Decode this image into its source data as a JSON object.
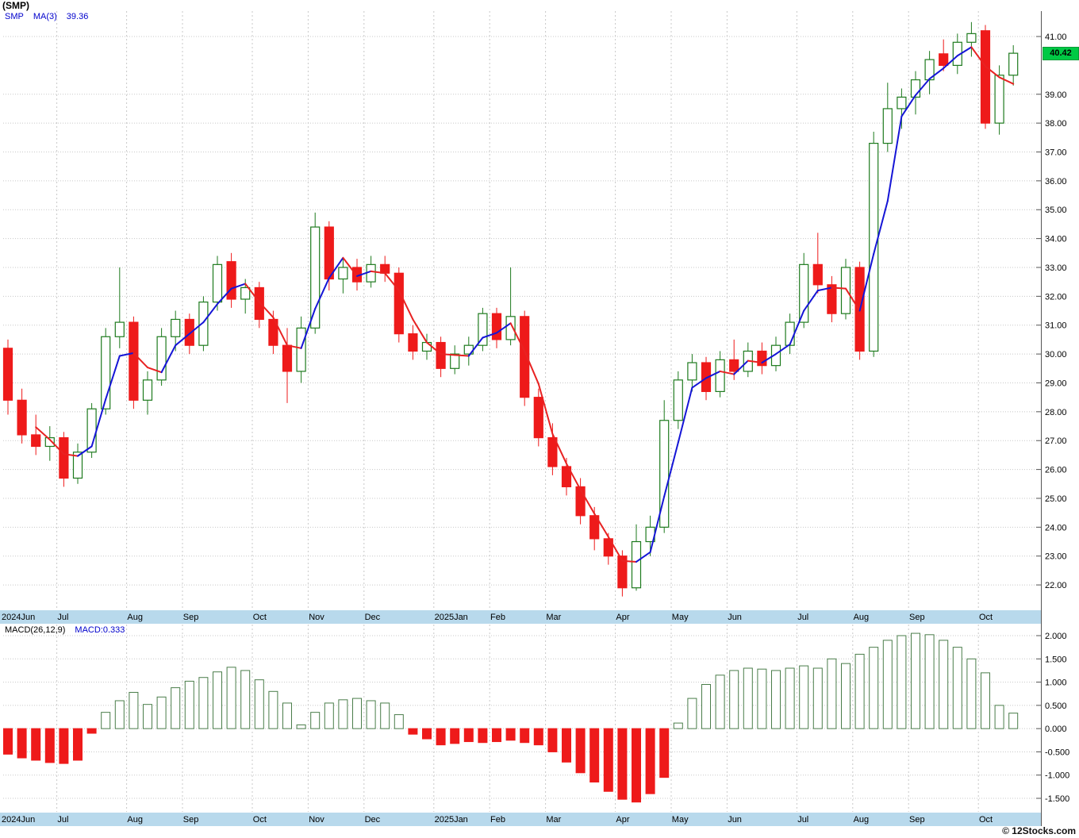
{
  "window": {
    "title": "(SMP)"
  },
  "main_legend": {
    "symbol": "SMP",
    "ma_label": "MA(3)",
    "ma_value": "39.36"
  },
  "macd_legend": {
    "label": "MACD(26,12,9)",
    "value": "MACD:0.333"
  },
  "price_badge": "40.42",
  "footer": {
    "copyright": "© 12Stocks.com"
  },
  "colors": {
    "up": "#1d7a1d",
    "down": "#ee1a1a",
    "ma_up": "#1515d6",
    "ma_down": "#e82222",
    "macd_up_outline": "#4a7d4a",
    "grid": "#c8c8c8",
    "band": "#b8d9ec",
    "axis_text": "#000000",
    "border": "#555555",
    "badge_bg": "#00c944"
  },
  "chart_data": [
    {
      "type": "candlestick",
      "title": "(SMP)",
      "series_name": "SMP weekly OHLC",
      "overlay": {
        "name": "MA(3)",
        "last_value": 39.36
      },
      "last_close": 40.42,
      "ylim": [
        21.15,
        41.88
      ],
      "price_ticks": [
        "41.00",
        "39.00",
        "38.00",
        "37.00",
        "36.00",
        "35.00",
        "34.00",
        "33.00",
        "32.00",
        "31.00",
        "30.00",
        "29.00",
        "28.00",
        "27.00",
        "26.00",
        "25.00",
        "24.00",
        "23.00",
        "22.00"
      ],
      "months": [
        {
          "label": "2024Jun",
          "i": 0
        },
        {
          "label": "Jul",
          "i": 4
        },
        {
          "label": "Aug",
          "i": 9
        },
        {
          "label": "Sep",
          "i": 13
        },
        {
          "label": "Oct",
          "i": 18
        },
        {
          "label": "Nov",
          "i": 22
        },
        {
          "label": "Dec",
          "i": 26
        },
        {
          "label": "2025Jan",
          "i": 31
        },
        {
          "label": "Feb",
          "i": 35
        },
        {
          "label": "Mar",
          "i": 39
        },
        {
          "label": "Apr",
          "i": 44
        },
        {
          "label": "May",
          "i": 48
        },
        {
          "label": "Jun",
          "i": 52
        },
        {
          "label": "Jul",
          "i": 57
        },
        {
          "label": "Aug",
          "i": 61
        },
        {
          "label": "Sep",
          "i": 65
        },
        {
          "label": "Oct",
          "i": 70
        }
      ],
      "ohlc": [
        [
          30.2,
          30.5,
          27.9,
          28.4
        ],
        [
          28.4,
          28.8,
          26.9,
          27.2
        ],
        [
          27.2,
          27.9,
          26.5,
          26.8
        ],
        [
          26.8,
          27.5,
          26.3,
          27.1
        ],
        [
          27.1,
          27.3,
          25.4,
          25.7
        ],
        [
          25.7,
          26.9,
          25.5,
          26.6
        ],
        [
          26.6,
          28.3,
          26.4,
          28.1
        ],
        [
          28.1,
          30.9,
          27.9,
          30.6
        ],
        [
          30.6,
          33.0,
          30.2,
          31.1
        ],
        [
          31.1,
          31.3,
          28.1,
          28.4
        ],
        [
          28.4,
          29.4,
          27.9,
          29.1
        ],
        [
          29.1,
          30.9,
          28.9,
          30.6
        ],
        [
          30.6,
          31.5,
          30.1,
          31.2
        ],
        [
          31.2,
          31.4,
          30.0,
          30.3
        ],
        [
          30.3,
          32.0,
          30.1,
          31.8
        ],
        [
          31.8,
          33.4,
          31.5,
          33.1
        ],
        [
          33.2,
          33.5,
          31.6,
          31.9
        ],
        [
          31.9,
          32.6,
          31.4,
          32.3
        ],
        [
          32.3,
          32.5,
          30.9,
          31.2
        ],
        [
          31.2,
          31.5,
          30.0,
          30.3
        ],
        [
          30.3,
          30.9,
          28.3,
          29.4
        ],
        [
          29.4,
          31.3,
          29.0,
          30.9
        ],
        [
          30.9,
          34.9,
          30.7,
          34.4
        ],
        [
          34.4,
          34.6,
          32.2,
          32.6
        ],
        [
          32.6,
          33.3,
          32.1,
          33.0
        ],
        [
          33.0,
          33.3,
          32.2,
          32.5
        ],
        [
          32.5,
          33.4,
          32.3,
          33.1
        ],
        [
          33.1,
          33.4,
          32.5,
          32.8
        ],
        [
          32.8,
          33.0,
          30.4,
          30.7
        ],
        [
          30.7,
          31.0,
          29.8,
          30.1
        ],
        [
          30.1,
          30.7,
          29.8,
          30.4
        ],
        [
          30.4,
          30.6,
          29.2,
          29.5
        ],
        [
          29.5,
          30.3,
          29.3,
          30.0
        ],
        [
          30.0,
          30.6,
          29.6,
          30.3
        ],
        [
          30.3,
          31.6,
          30.1,
          31.4
        ],
        [
          31.4,
          31.6,
          30.2,
          30.5
        ],
        [
          30.5,
          33.0,
          30.3,
          31.3
        ],
        [
          31.3,
          31.5,
          28.2,
          28.5
        ],
        [
          28.5,
          28.8,
          26.8,
          27.1
        ],
        [
          27.1,
          27.6,
          25.8,
          26.1
        ],
        [
          26.1,
          26.4,
          25.1,
          25.4
        ],
        [
          25.4,
          25.7,
          24.1,
          24.4
        ],
        [
          24.4,
          24.7,
          23.2,
          23.6
        ],
        [
          23.6,
          23.8,
          22.7,
          23.0
        ],
        [
          23.0,
          23.2,
          21.6,
          21.9
        ],
        [
          21.9,
          24.1,
          21.8,
          23.5
        ],
        [
          23.5,
          24.4,
          23.0,
          24.0
        ],
        [
          24.0,
          28.4,
          23.8,
          27.7
        ],
        [
          27.7,
          29.4,
          27.4,
          29.1
        ],
        [
          29.1,
          30.0,
          28.7,
          29.7
        ],
        [
          29.7,
          29.9,
          28.4,
          28.7
        ],
        [
          28.7,
          30.1,
          28.5,
          29.8
        ],
        [
          29.8,
          30.5,
          29.1,
          29.4
        ],
        [
          29.4,
          30.4,
          29.2,
          30.1
        ],
        [
          30.1,
          30.4,
          29.3,
          29.6
        ],
        [
          29.6,
          30.6,
          29.4,
          30.3
        ],
        [
          30.3,
          31.4,
          30.0,
          31.1
        ],
        [
          31.1,
          33.5,
          30.9,
          33.1
        ],
        [
          33.1,
          34.2,
          32.1,
          32.4
        ],
        [
          32.4,
          32.7,
          31.1,
          31.4
        ],
        [
          31.4,
          33.3,
          31.2,
          33.0
        ],
        [
          33.0,
          33.2,
          29.8,
          30.1
        ],
        [
          30.1,
          37.7,
          29.9,
          37.3
        ],
        [
          37.3,
          39.4,
          37.0,
          38.5
        ],
        [
          38.5,
          39.2,
          37.8,
          38.9
        ],
        [
          38.9,
          39.8,
          38.3,
          39.5
        ],
        [
          39.5,
          40.5,
          39.0,
          40.2
        ],
        [
          40.4,
          40.9,
          39.8,
          40.0
        ],
        [
          40.0,
          41.1,
          39.7,
          40.8
        ],
        [
          40.8,
          41.5,
          40.3,
          41.1
        ],
        [
          41.2,
          41.4,
          37.8,
          38.0
        ],
        [
          38.0,
          40.0,
          37.6,
          39.66
        ],
        [
          39.66,
          40.7,
          39.3,
          40.42
        ]
      ]
    },
    {
      "type": "bar",
      "title": "MACD(26,12,9)",
      "last": 0.333,
      "ylim": [
        -1.79,
        2.239
      ],
      "ticks": [
        "2.000",
        "1.500",
        "1.000",
        "0.500",
        "0.000",
        "-0.500",
        "-1.000",
        "-1.500"
      ],
      "values": [
        -0.55,
        -0.63,
        -0.68,
        -0.73,
        -0.75,
        -0.68,
        -0.1,
        0.35,
        0.6,
        0.78,
        0.52,
        0.68,
        0.88,
        1.02,
        1.1,
        1.22,
        1.32,
        1.25,
        1.05,
        0.8,
        0.55,
        0.08,
        0.35,
        0.55,
        0.62,
        0.65,
        0.6,
        0.55,
        0.3,
        -0.12,
        -0.22,
        -0.35,
        -0.32,
        -0.28,
        -0.3,
        -0.28,
        -0.25,
        -0.3,
        -0.35,
        -0.5,
        -0.72,
        -0.95,
        -1.15,
        -1.35,
        -1.52,
        -1.58,
        -1.4,
        -1.05,
        0.12,
        0.65,
        0.95,
        1.15,
        1.25,
        1.3,
        1.28,
        1.25,
        1.3,
        1.35,
        1.3,
        1.5,
        1.4,
        1.6,
        1.75,
        1.9,
        2.0,
        2.05,
        2.02,
        1.9,
        1.75,
        1.5,
        1.2,
        0.5,
        0.333
      ]
    }
  ]
}
